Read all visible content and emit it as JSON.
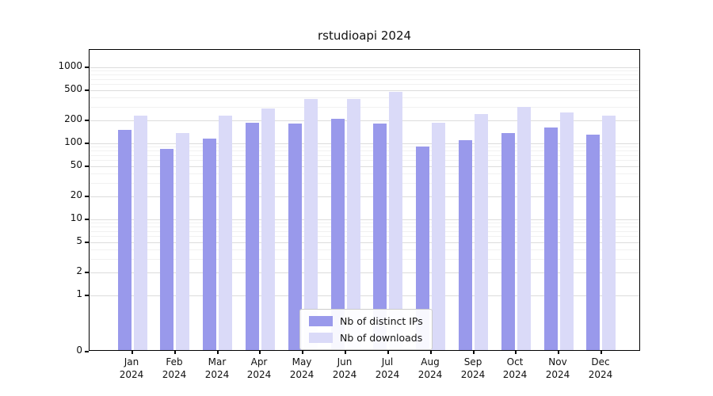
{
  "title": "rstudioapi 2024",
  "legend": {
    "items": [
      {
        "label": "Nb of distinct IPs",
        "color": "#9999eb"
      },
      {
        "label": "Nb of downloads",
        "color": "#dadaf8"
      }
    ]
  },
  "chart_data": {
    "type": "bar",
    "title": "rstudioapi 2024",
    "yscale": "log-like (0 then log ticks)",
    "y_ticks": [
      0,
      1,
      2,
      5,
      10,
      20,
      50,
      100,
      200,
      500,
      1000
    ],
    "grid": true,
    "legend_position": "lower center inside plot",
    "year": "2024",
    "categories": [
      "Jan",
      "Feb",
      "Mar",
      "Apr",
      "May",
      "Jun",
      "Jul",
      "Aug",
      "Sep",
      "Oct",
      "Nov",
      "Dec"
    ],
    "series": [
      {
        "name": "Nb of distinct IPs",
        "color": "#9999eb",
        "values": [
          150,
          85,
          115,
          185,
          180,
          210,
          180,
          90,
          110,
          135,
          160,
          130
        ]
      },
      {
        "name": "Nb of downloads",
        "color": "#dadaf8",
        "values": [
          230,
          135,
          230,
          290,
          380,
          380,
          480,
          185,
          245,
          300,
          255,
          230
        ]
      }
    ]
  }
}
